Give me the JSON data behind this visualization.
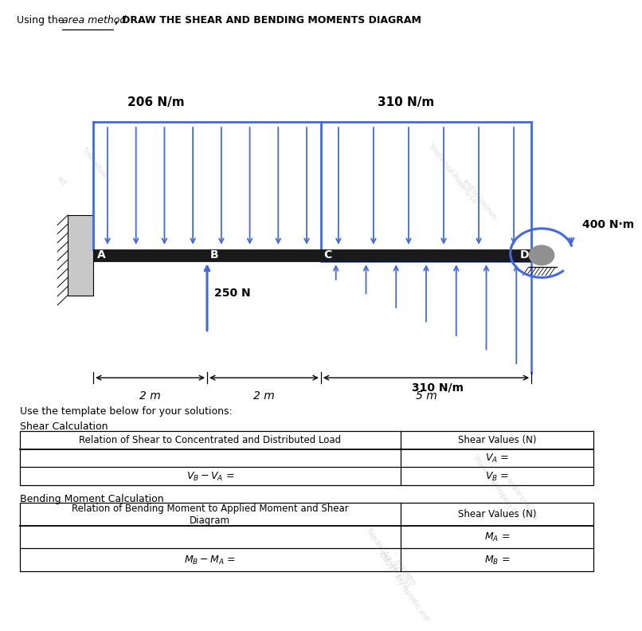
{
  "title_plain": "Using the ",
  "title_underline": "area method",
  "title_bold": ", DRAW THE SHEAR AND BENDING MOMENTS DIAGRAM",
  "load1_label": "206 N/m",
  "load2_label": "310 N/m",
  "load3_label": "310 N/m",
  "conc_load_label": "250 N",
  "moment_label": "400 N·m",
  "dim1": "2 m",
  "dim2": "2 m",
  "dim3": "5 m",
  "point_A": "A",
  "point_B": "B",
  "point_C": "C",
  "point_D": "D",
  "template_text": "Use the template below for your solutions:",
  "shear_title": "Shear Calculation",
  "shear_col1": "Relation of Shear to Concentrated and Distributed Load",
  "shear_col2": "Shear Values (N)",
  "bm_title": "Bending Moment Calculation",
  "bm_col1": "Relation of Bending Moment to Applied Moment and Shear\nDiagram",
  "bm_col2": "Shear Values (N)",
  "beam_color": "#1a1a1a",
  "arrow_color": "#4169E1",
  "bg_color": "#ffffff"
}
